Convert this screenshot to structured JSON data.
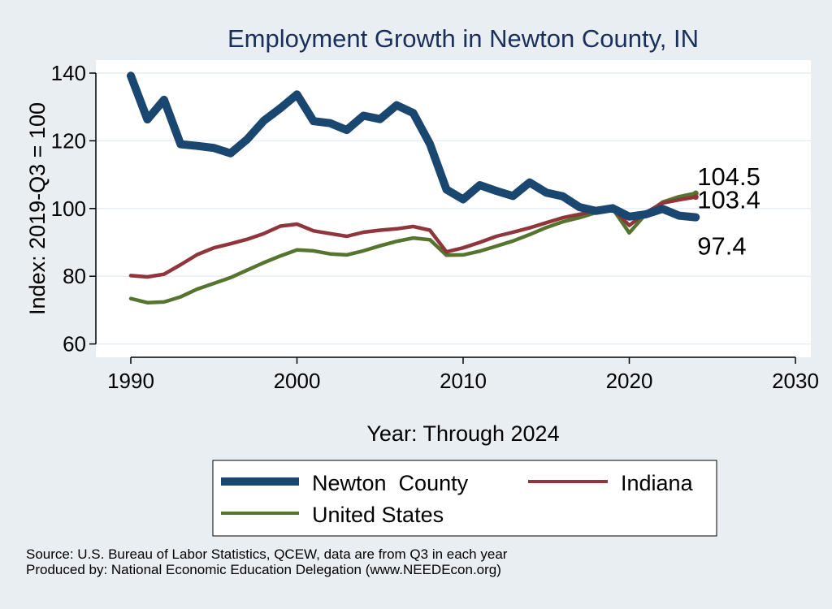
{
  "chart_data": {
    "type": "line",
    "title": "Employment Growth in Newton County, IN",
    "xlabel": "Year: Through 2024",
    "ylabel": "Index: 2019-Q3 = 100",
    "xlim": [
      1990,
      2030
    ],
    "ylim": [
      56,
      143
    ],
    "x_ticks": [
      1990,
      2000,
      2010,
      2020,
      2030
    ],
    "y_ticks": [
      60,
      80,
      100,
      120,
      140
    ],
    "grid": "horizontal",
    "legend_position": "bottom",
    "x": [
      1990,
      1991,
      1992,
      1993,
      1994,
      1995,
      1996,
      1997,
      1998,
      1999,
      2000,
      2001,
      2002,
      2003,
      2004,
      2005,
      2006,
      2007,
      2008,
      2009,
      2010,
      2011,
      2012,
      2013,
      2014,
      2015,
      2016,
      2017,
      2018,
      2019,
      2020,
      2021,
      2022,
      2023,
      2024
    ],
    "series": [
      {
        "name": "Newton  County",
        "color": "#1a476f",
        "values": [
          139.2,
          126.3,
          132.1,
          119.0,
          118.5,
          117.9,
          116.3,
          120.4,
          125.9,
          129.6,
          133.7,
          125.8,
          125.2,
          123.2,
          127.4,
          126.4,
          130.5,
          128.2,
          119.1,
          105.6,
          102.7,
          106.9,
          105.2,
          103.7,
          107.7,
          104.7,
          103.6,
          100.4,
          99.3,
          100.1,
          97.6,
          98.3,
          99.9,
          97.9,
          97.4
        ],
        "end_label": "97.4"
      },
      {
        "name": "Indiana",
        "color": "#90353b",
        "values": [
          80.2,
          79.8,
          80.6,
          83.4,
          86.4,
          88.4,
          89.6,
          90.9,
          92.6,
          94.8,
          95.4,
          93.4,
          92.6,
          91.8,
          93.0,
          93.6,
          94.0,
          94.7,
          93.6,
          87.2,
          88.4,
          90.0,
          91.8,
          93.0,
          94.3,
          95.8,
          97.3,
          98.3,
          99.2,
          100.0,
          95.0,
          98.8,
          101.6,
          102.6,
          103.4
        ],
        "end_label": "103.4"
      },
      {
        "name": "United States",
        "color": "#55752f",
        "values": [
          73.4,
          72.2,
          72.4,
          73.9,
          76.2,
          77.9,
          79.6,
          81.8,
          84.0,
          86.0,
          87.8,
          87.5,
          86.6,
          86.3,
          87.5,
          89.0,
          90.3,
          91.3,
          90.8,
          86.2,
          86.3,
          87.4,
          88.9,
          90.4,
          92.3,
          94.4,
          96.1,
          97.3,
          98.8,
          100.0,
          92.8,
          98.4,
          101.9,
          103.5,
          104.5
        ],
        "end_label": "104.5"
      }
    ],
    "legend": [
      "Newton  County",
      "Indiana",
      "United States"
    ]
  },
  "source": {
    "line1": "Source: U.S. Bureau of Labor Statistics, QCEW, data are from Q3 in each year",
    "line2": "Produced by: National Economic Education Delegation (www.NEEDEcon.org)"
  },
  "colors": {
    "background": "#e9eef3",
    "plot_area": "#ffffff",
    "title": "#1a2f5a",
    "gridline": "#e9eef3"
  }
}
